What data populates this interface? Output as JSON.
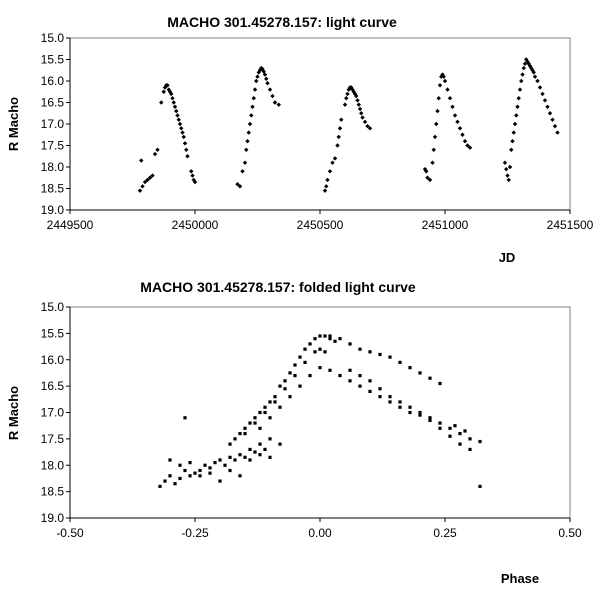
{
  "chart_data": [
    {
      "type": "scatter",
      "title": "MACHO 301.45278.157: light curve",
      "xlabel": "JD",
      "ylabel": "R Macho",
      "xlim": [
        2449500,
        2451500
      ],
      "ylim": [
        15.0,
        19.0
      ],
      "y_inverted": true,
      "grid": false,
      "legend": "none",
      "x_ticks": [
        2449500,
        2450000,
        2450500,
        2451000,
        2451500
      ],
      "x_tick_labels": [
        "2449500",
        "2450000",
        "2450500",
        "2451000",
        "2451500"
      ],
      "y_ticks": [
        15.0,
        15.5,
        16.0,
        16.5,
        17.0,
        17.5,
        18.0,
        18.5,
        19.0
      ],
      "y_tick_labels": [
        "15.0",
        "15.5",
        "16.0",
        "16.5",
        "17.0",
        "17.5",
        "18.0",
        "18.5",
        "19.0"
      ],
      "series": [
        {
          "color": "#000000",
          "x": [
            2449780,
            2449785,
            2449790,
            2449800,
            2449810,
            2449820,
            2449830,
            2449840,
            2449850,
            2449865,
            2449875,
            2449880,
            2449885,
            2449890,
            2449895,
            2449900,
            2449905,
            2449910,
            2449915,
            2449920,
            2449925,
            2449930,
            2449935,
            2449940,
            2449945,
            2449950,
            2449955,
            2449960,
            2449965,
            2449970,
            2449985,
            2449990,
            2449995,
            2450000,
            2450170,
            2450180,
            2450190,
            2450200,
            2450205,
            2450210,
            2450215,
            2450220,
            2450225,
            2450230,
            2450235,
            2450240,
            2450245,
            2450250,
            2450255,
            2450260,
            2450265,
            2450270,
            2450275,
            2450280,
            2450285,
            2450290,
            2450300,
            2450310,
            2450320,
            2450335,
            2450520,
            2450525,
            2450530,
            2450540,
            2450550,
            2450560,
            2450570,
            2450575,
            2450580,
            2450585,
            2450600,
            2450605,
            2450610,
            2450615,
            2450620,
            2450625,
            2450630,
            2450635,
            2450640,
            2450645,
            2450650,
            2450655,
            2450660,
            2450665,
            2450670,
            2450680,
            2450690,
            2450700,
            2450920,
            2450925,
            2450930,
            2450940,
            2450950,
            2450955,
            2450960,
            2450965,
            2450970,
            2450975,
            2450980,
            2450985,
            2450990,
            2450995,
            2451000,
            2451010,
            2451020,
            2451030,
            2451040,
            2451050,
            2451060,
            2451070,
            2451080,
            2451090,
            2451100,
            2451240,
            2451245,
            2451250,
            2451255,
            2451260,
            2451265,
            2451270,
            2451275,
            2451280,
            2451285,
            2451290,
            2451295,
            2451300,
            2451305,
            2451310,
            2451315,
            2451320,
            2451325,
            2451330,
            2451335,
            2451340,
            2451345,
            2451350,
            2451355,
            2451360,
            2451370,
            2451380,
            2451390,
            2451400,
            2451410,
            2451420,
            2451430,
            2451440,
            2451450
          ],
          "y": [
            18.55,
            17.85,
            18.45,
            18.35,
            18.3,
            18.25,
            18.2,
            17.7,
            17.6,
            16.5,
            16.25,
            16.15,
            16.1,
            16.1,
            16.2,
            16.25,
            16.3,
            16.4,
            16.5,
            16.6,
            16.7,
            16.8,
            16.9,
            17.0,
            17.1,
            17.2,
            17.3,
            17.45,
            17.6,
            17.75,
            18.1,
            18.2,
            18.3,
            18.35,
            18.4,
            18.45,
            18.1,
            17.9,
            17.6,
            17.4,
            17.2,
            17.0,
            16.8,
            16.6,
            16.4,
            16.2,
            16.0,
            15.9,
            15.8,
            15.75,
            15.7,
            15.72,
            15.78,
            15.85,
            15.95,
            16.05,
            16.2,
            16.35,
            16.5,
            16.55,
            18.55,
            18.45,
            18.3,
            18.1,
            17.9,
            17.8,
            17.5,
            17.3,
            17.1,
            16.9,
            16.55,
            16.4,
            16.3,
            16.2,
            16.15,
            16.15,
            16.2,
            16.25,
            16.3,
            16.35,
            16.45,
            16.55,
            16.65,
            16.75,
            16.85,
            16.95,
            17.05,
            17.1,
            18.05,
            18.1,
            18.25,
            18.3,
            17.9,
            17.6,
            17.3,
            17.0,
            16.7,
            16.4,
            16.1,
            15.9,
            15.85,
            15.9,
            16.0,
            16.2,
            16.4,
            16.6,
            16.8,
            16.95,
            17.1,
            17.25,
            17.4,
            17.5,
            17.55,
            17.9,
            18.05,
            18.2,
            18.3,
            18.0,
            17.6,
            17.4,
            17.2,
            17.0,
            16.8,
            16.6,
            16.4,
            16.2,
            16.0,
            15.85,
            15.7,
            15.6,
            15.5,
            15.55,
            15.6,
            15.65,
            15.7,
            15.75,
            15.8,
            15.9,
            16.0,
            16.15,
            16.3,
            16.45,
            16.6,
            16.75,
            16.9,
            17.05,
            17.2
          ]
        }
      ]
    },
    {
      "type": "scatter",
      "title": "MACHO 301.45278.157: folded light curve",
      "xlabel": "Phase",
      "ylabel": "R Macho",
      "xlim": [
        -0.5,
        0.5
      ],
      "ylim": [
        15.0,
        19.0
      ],
      "y_inverted": true,
      "grid": false,
      "legend": "none",
      "x_ticks": [
        -0.5,
        -0.25,
        0.0,
        0.25,
        0.5
      ],
      "x_tick_labels": [
        "-0.50",
        "-0.25",
        "0.00",
        "0.25",
        "0.50"
      ],
      "y_ticks": [
        15.0,
        15.5,
        16.0,
        16.5,
        17.0,
        17.5,
        18.0,
        18.5,
        19.0
      ],
      "y_tick_labels": [
        "15.0",
        "15.5",
        "16.0",
        "16.5",
        "17.0",
        "17.5",
        "18.0",
        "18.5",
        "19.0"
      ],
      "series": [
        {
          "color": "#000000",
          "x": [
            -0.32,
            -0.31,
            -0.3,
            -0.29,
            -0.28,
            -0.27,
            -0.26,
            -0.25,
            -0.24,
            -0.23,
            -0.22,
            -0.21,
            -0.2,
            -0.19,
            -0.18,
            -0.17,
            -0.16,
            -0.15,
            -0.14,
            -0.13,
            -0.12,
            -0.11,
            -0.1,
            -0.3,
            -0.28,
            -0.26,
            -0.24,
            -0.22,
            -0.2,
            -0.18,
            -0.16,
            -0.14,
            -0.12,
            -0.1,
            -0.08,
            -0.27,
            -0.18,
            -0.17,
            -0.16,
            -0.15,
            -0.14,
            -0.13,
            -0.12,
            -0.11,
            -0.1,
            -0.09,
            -0.08,
            -0.07,
            -0.06,
            -0.05,
            -0.04,
            -0.03,
            -0.02,
            -0.01,
            0.0,
            0.01,
            0.02,
            0.03,
            -0.15,
            -0.13,
            -0.11,
            -0.09,
            -0.07,
            -0.05,
            -0.03,
            -0.01,
            0.0,
            0.01,
            -0.12,
            -0.1,
            -0.08,
            -0.06,
            -0.04,
            -0.02,
            0.0,
            0.02,
            0.04,
            0.06,
            0.08,
            0.1,
            0.12,
            0.14,
            0.16,
            0.18,
            0.2,
            0.22,
            0.24,
            0.26,
            0.28,
            0.3,
            0.02,
            0.04,
            0.06,
            0.08,
            0.1,
            0.12,
            0.14,
            0.16,
            0.18,
            0.2,
            0.22,
            0.24,
            0.06,
            0.08,
            0.1,
            0.12,
            0.14,
            0.16,
            0.18,
            0.2,
            0.22,
            0.24,
            0.26,
            0.28,
            0.3,
            0.32,
            0.32,
            0.29,
            0.27
          ],
          "y": [
            18.4,
            18.3,
            18.2,
            18.35,
            18.25,
            18.1,
            18.2,
            18.15,
            18.1,
            18.0,
            18.05,
            17.95,
            17.9,
            18.0,
            17.85,
            17.9,
            17.8,
            17.85,
            17.7,
            17.75,
            17.6,
            17.7,
            17.5,
            17.9,
            18.0,
            17.95,
            18.2,
            18.15,
            18.3,
            18.1,
            18.2,
            17.9,
            17.8,
            17.85,
            17.6,
            17.1,
            17.6,
            17.5,
            17.4,
            17.3,
            17.2,
            17.1,
            17.0,
            16.9,
            16.8,
            16.7,
            16.5,
            16.4,
            16.25,
            16.1,
            15.95,
            15.8,
            15.7,
            15.6,
            15.55,
            15.55,
            15.6,
            15.65,
            17.4,
            17.2,
            17.0,
            16.8,
            16.55,
            16.3,
            16.05,
            15.85,
            15.8,
            15.85,
            17.3,
            17.1,
            16.9,
            16.7,
            16.5,
            16.3,
            16.15,
            16.2,
            16.3,
            16.4,
            16.5,
            16.6,
            16.7,
            16.8,
            16.9,
            17.0,
            17.05,
            17.1,
            17.2,
            17.3,
            17.4,
            17.5,
            15.55,
            15.6,
            15.7,
            15.8,
            15.85,
            15.9,
            15.95,
            16.05,
            16.15,
            16.25,
            16.35,
            16.45,
            16.2,
            16.3,
            16.4,
            16.55,
            16.7,
            16.8,
            16.9,
            17.0,
            17.15,
            17.3,
            17.45,
            17.6,
            17.7,
            17.55,
            18.4,
            17.35,
            17.25
          ]
        }
      ]
    }
  ]
}
